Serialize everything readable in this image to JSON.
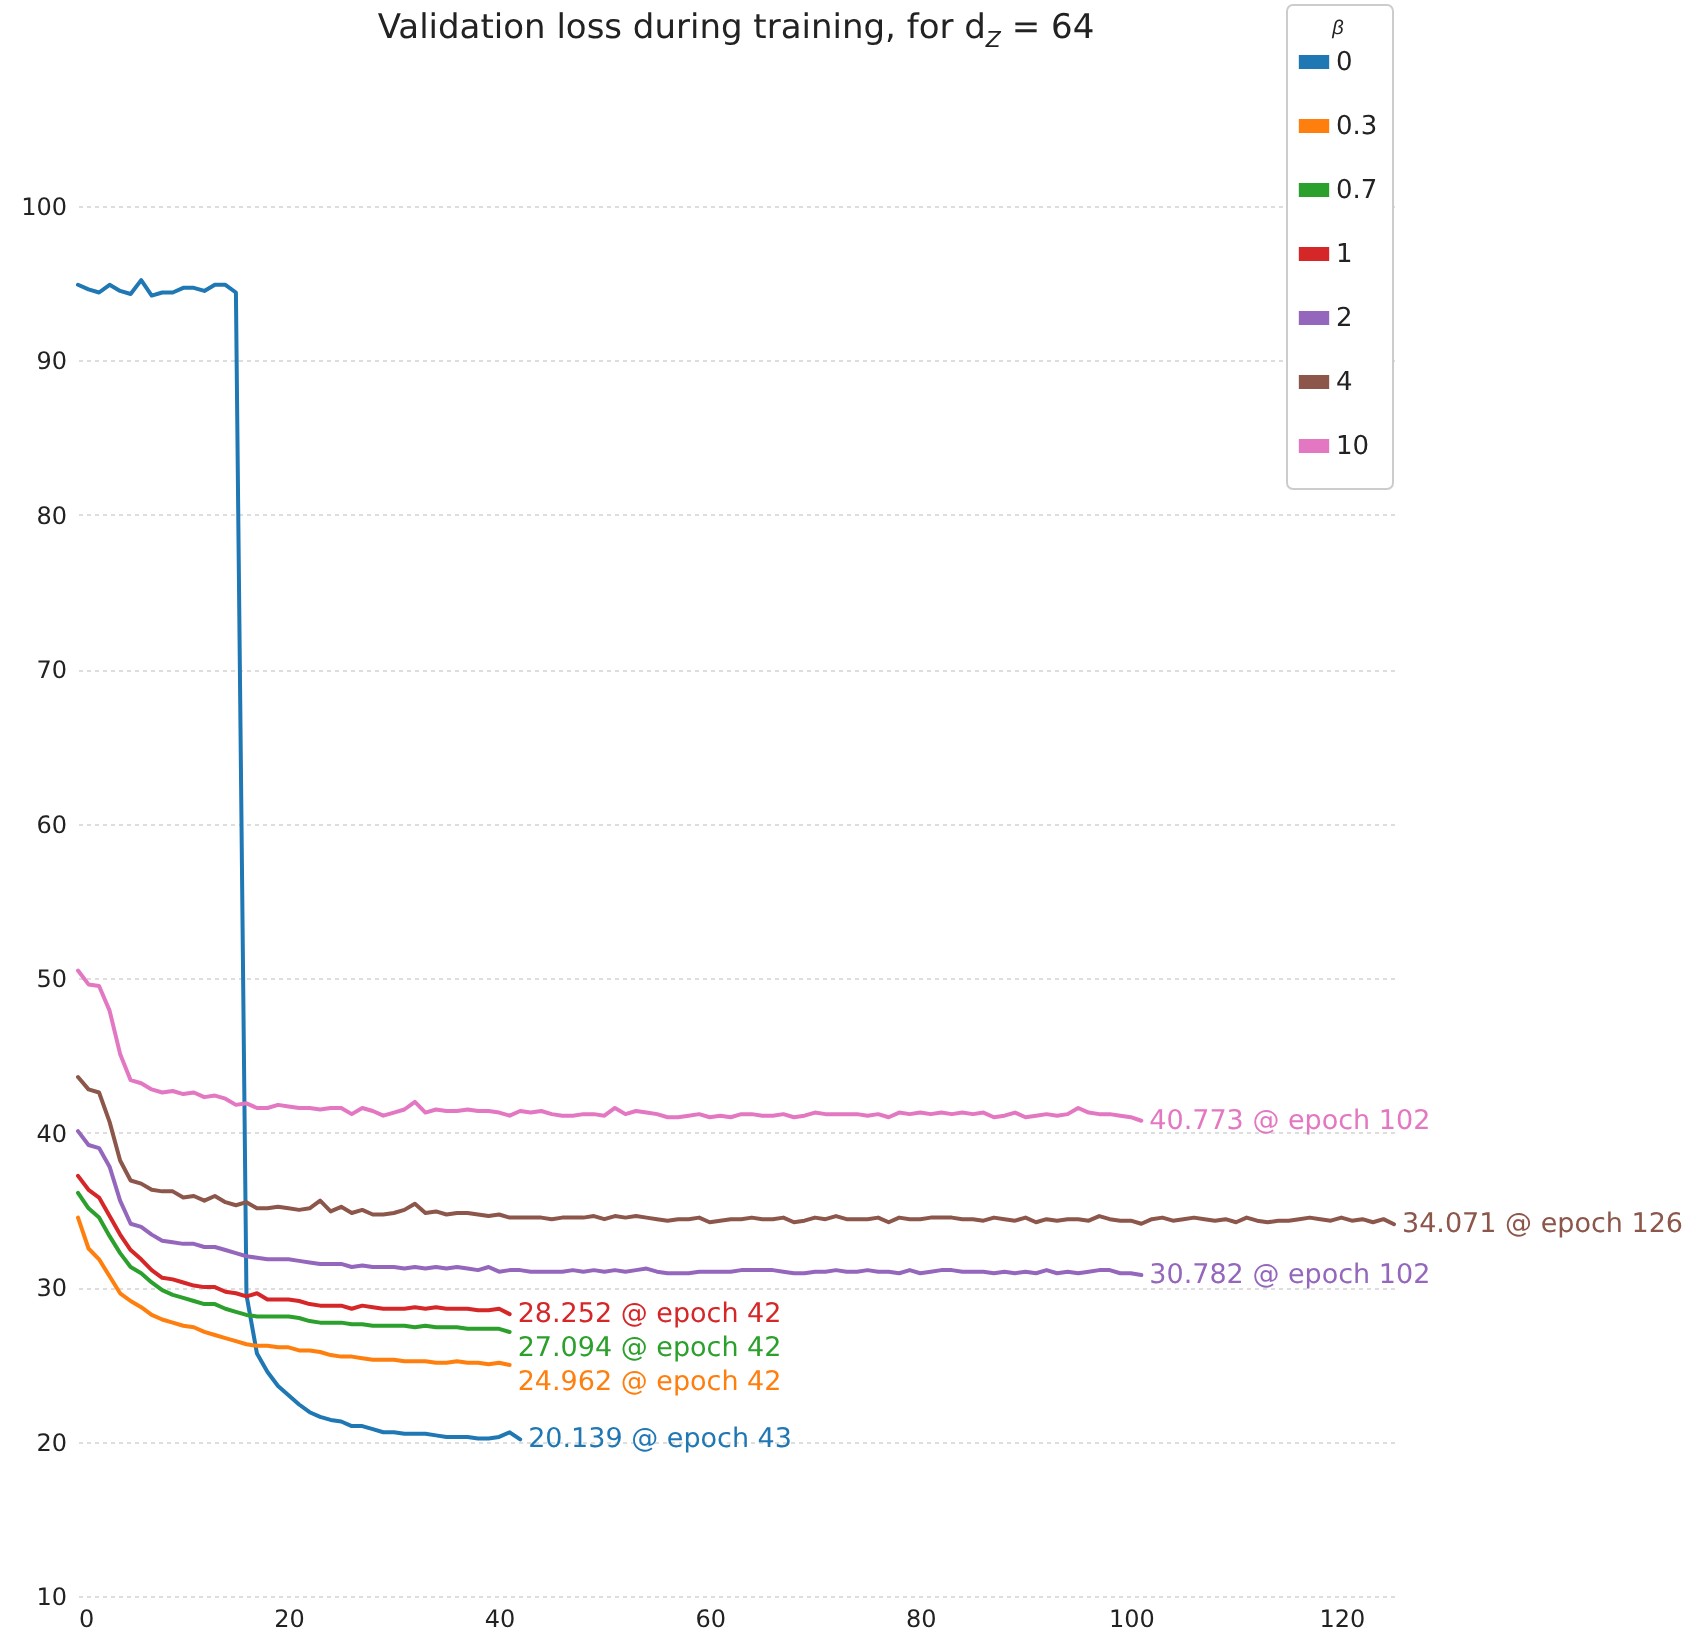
{
  "chart_data": {
    "type": "line",
    "title": "Validation loss during training, for d$_{Z}$ = 64",
    "legend_title": "β",
    "legend": "top right",
    "grid": "y",
    "xlim": [
      0,
      125
    ],
    "xticks": [
      0,
      20,
      40,
      60,
      80,
      100,
      120
    ],
    "ylim": [
      10,
      100
    ],
    "yticks": [
      10,
      20,
      30,
      40,
      50,
      60,
      70,
      80,
      90,
      100
    ],
    "x": [
      0,
      1,
      2,
      3,
      4,
      5,
      6,
      7,
      8,
      9,
      10,
      11,
      12,
      13,
      14,
      15,
      16,
      17,
      18,
      19,
      20,
      21,
      22,
      23,
      24,
      25,
      26,
      27,
      28,
      29,
      30,
      31,
      32,
      33,
      34,
      35,
      36,
      37,
      38,
      39,
      40,
      41,
      42,
      43,
      44,
      45,
      46,
      47,
      48,
      49,
      50,
      51,
      52,
      53,
      54,
      55,
      56,
      57,
      58,
      59,
      60,
      61,
      62,
      63,
      64,
      65,
      66,
      67,
      68,
      69,
      70,
      71,
      72,
      73,
      74,
      75,
      76,
      77,
      78,
      79,
      80,
      81,
      82,
      83,
      84,
      85,
      86,
      87,
      88,
      89,
      90,
      91,
      92,
      93,
      94,
      95,
      96,
      97,
      98,
      99,
      100,
      101,
      102,
      103,
      104,
      105,
      106,
      107,
      108,
      109,
      110,
      111,
      112,
      113,
      114,
      115,
      116,
      117,
      118,
      119,
      120,
      121,
      122,
      123,
      124,
      125
    ],
    "series": [
      {
        "name": "0",
        "color": "#1f77b4",
        "values": [
          94.9,
          94.6,
          94.4,
          94.9,
          94.5,
          94.3,
          95.2,
          94.2,
          94.4,
          94.4,
          94.7,
          94.7,
          94.5,
          94.9,
          94.9,
          94.4,
          29.5,
          25.7,
          24.5,
          23.6,
          23.0,
          22.4,
          21.9,
          21.6,
          21.4,
          21.3,
          21.0,
          21.0,
          20.8,
          20.6,
          20.6,
          20.5,
          20.5,
          20.5,
          20.4,
          20.3,
          20.3,
          20.3,
          20.2,
          20.2,
          20.3,
          20.6,
          20.139,
          null,
          null,
          null,
          null,
          null,
          null,
          null,
          null,
          null,
          null,
          null,
          null,
          null,
          null,
          null,
          null,
          null,
          null,
          null,
          null,
          null,
          null,
          null,
          null,
          null,
          null,
          null,
          null,
          null,
          null,
          null,
          null,
          null,
          null,
          null,
          null,
          null,
          null,
          null,
          null,
          null,
          null,
          null,
          null,
          null,
          null,
          null,
          null,
          null,
          null,
          null,
          null,
          null,
          null,
          null,
          null,
          null,
          null,
          null,
          null,
          null,
          null,
          null,
          null,
          null,
          null,
          null,
          null,
          null,
          null,
          null,
          null,
          null,
          null,
          null,
          null,
          null,
          null,
          null,
          null,
          null,
          null,
          null
        ]
      },
      {
        "name": "0.3",
        "color": "#ff7f0e",
        "values": [
          34.5,
          32.5,
          31.8,
          30.7,
          29.6,
          29.1,
          28.7,
          28.2,
          27.9,
          27.7,
          27.5,
          27.4,
          27.1,
          26.9,
          26.7,
          26.5,
          26.3,
          26.2,
          26.2,
          26.1,
          26.1,
          25.9,
          25.9,
          25.8,
          25.6,
          25.5,
          25.5,
          25.4,
          25.3,
          25.3,
          25.3,
          25.2,
          25.2,
          25.2,
          25.1,
          25.1,
          25.2,
          25.1,
          25.1,
          25.0,
          25.1,
          24.962,
          null,
          null,
          null,
          null,
          null,
          null,
          null,
          null,
          null,
          null,
          null,
          null,
          null,
          null,
          null,
          null,
          null,
          null,
          null,
          null,
          null,
          null,
          null,
          null,
          null,
          null,
          null,
          null,
          null,
          null,
          null,
          null,
          null,
          null,
          null,
          null,
          null,
          null,
          null,
          null,
          null,
          null,
          null,
          null,
          null,
          null,
          null,
          null,
          null,
          null,
          null,
          null,
          null,
          null,
          null,
          null,
          null,
          null,
          null,
          null,
          null,
          null,
          null,
          null,
          null,
          null,
          null,
          null,
          null,
          null,
          null,
          null,
          null,
          null,
          null,
          null,
          null,
          null,
          null,
          null,
          null,
          null,
          null,
          null
        ]
      },
      {
        "name": "0.7",
        "color": "#2ca02c",
        "values": [
          36.1,
          35.1,
          34.5,
          33.3,
          32.2,
          31.3,
          30.9,
          30.3,
          29.8,
          29.5,
          29.3,
          29.1,
          28.9,
          28.9,
          28.6,
          28.4,
          28.2,
          28.1,
          28.1,
          28.1,
          28.1,
          28.0,
          27.8,
          27.7,
          27.7,
          27.7,
          27.6,
          27.6,
          27.5,
          27.5,
          27.5,
          27.5,
          27.4,
          27.5,
          27.4,
          27.4,
          27.4,
          27.3,
          27.3,
          27.3,
          27.3,
          27.094,
          null,
          null,
          null,
          null,
          null,
          null,
          null,
          null,
          null,
          null,
          null,
          null,
          null,
          null,
          null,
          null,
          null,
          null,
          null,
          null,
          null,
          null,
          null,
          null,
          null,
          null,
          null,
          null,
          null,
          null,
          null,
          null,
          null,
          null,
          null,
          null,
          null,
          null,
          null,
          null,
          null,
          null,
          null,
          null,
          null,
          null,
          null,
          null,
          null,
          null,
          null,
          null,
          null,
          null,
          null,
          null,
          null,
          null,
          null,
          null,
          null,
          null,
          null,
          null,
          null,
          null,
          null,
          null,
          null,
          null,
          null,
          null,
          null,
          null,
          null,
          null,
          null,
          null,
          null,
          null,
          null,
          null,
          null,
          null
        ]
      },
      {
        "name": "1",
        "color": "#d62728",
        "values": [
          37.2,
          36.3,
          35.8,
          34.6,
          33.4,
          32.4,
          31.8,
          31.1,
          30.6,
          30.5,
          30.3,
          30.1,
          30.0,
          30.0,
          29.7,
          29.6,
          29.4,
          29.6,
          29.2,
          29.2,
          29.2,
          29.1,
          28.9,
          28.8,
          28.8,
          28.8,
          28.6,
          28.8,
          28.7,
          28.6,
          28.6,
          28.6,
          28.7,
          28.6,
          28.7,
          28.6,
          28.6,
          28.6,
          28.5,
          28.5,
          28.6,
          28.252,
          null,
          null,
          null,
          null,
          null,
          null,
          null,
          null,
          null,
          null,
          null,
          null,
          null,
          null,
          null,
          null,
          null,
          null,
          null,
          null,
          null,
          null,
          null,
          null,
          null,
          null,
          null,
          null,
          null,
          null,
          null,
          null,
          null,
          null,
          null,
          null,
          null,
          null,
          null,
          null,
          null,
          null,
          null,
          null,
          null,
          null,
          null,
          null,
          null,
          null,
          null,
          null,
          null,
          null,
          null,
          null,
          null,
          null,
          null,
          null,
          null,
          null,
          null,
          null,
          null,
          null,
          null,
          null,
          null,
          null,
          null,
          null,
          null,
          null,
          null,
          null,
          null,
          null,
          null,
          null,
          null,
          null,
          null,
          null
        ]
      },
      {
        "name": "2",
        "color": "#9467bd",
        "values": [
          40.1,
          39.2,
          39.0,
          37.8,
          35.6,
          34.1,
          33.9,
          33.4,
          33.0,
          32.9,
          32.8,
          32.8,
          32.6,
          32.6,
          32.4,
          32.2,
          32.0,
          31.9,
          31.8,
          31.8,
          31.8,
          31.7,
          31.6,
          31.5,
          31.5,
          31.5,
          31.3,
          31.4,
          31.3,
          31.3,
          31.3,
          31.2,
          31.3,
          31.2,
          31.3,
          31.2,
          31.3,
          31.2,
          31.1,
          31.3,
          31.0,
          31.1,
          31.1,
          31.0,
          31.0,
          31.0,
          31.0,
          31.1,
          31.0,
          31.1,
          31.0,
          31.1,
          31.0,
          31.1,
          31.2,
          31.0,
          30.9,
          30.9,
          30.9,
          31.0,
          31.0,
          31.0,
          31.0,
          31.1,
          31.1,
          31.1,
          31.1,
          31.0,
          30.9,
          30.9,
          31.0,
          31.0,
          31.1,
          31.0,
          31.0,
          31.1,
          31.0,
          31.0,
          30.9,
          31.1,
          30.9,
          31.0,
          31.1,
          31.1,
          31.0,
          31.0,
          31.0,
          30.9,
          31.0,
          30.9,
          31.0,
          30.9,
          31.1,
          30.9,
          31.0,
          30.9,
          31.0,
          31.1,
          31.1,
          30.9,
          30.9,
          30.782,
          null,
          null,
          null,
          null,
          null,
          null,
          null,
          null,
          null,
          null,
          null,
          null,
          null,
          null,
          null,
          null,
          null,
          null,
          null,
          null,
          null,
          null,
          null,
          null
        ]
      },
      {
        "name": "4",
        "color": "#8c564b",
        "values": [
          43.6,
          42.8,
          42.6,
          40.7,
          38.2,
          36.9,
          36.7,
          36.3,
          36.2,
          36.2,
          35.8,
          35.9,
          35.6,
          35.9,
          35.5,
          35.3,
          35.5,
          35.1,
          35.1,
          35.2,
          35.1,
          35.0,
          35.1,
          35.6,
          34.9,
          35.2,
          34.8,
          35.0,
          34.7,
          34.7,
          34.8,
          35.0,
          35.4,
          34.8,
          34.9,
          34.7,
          34.8,
          34.8,
          34.7,
          34.6,
          34.7,
          34.5,
          34.5,
          34.5,
          34.5,
          34.4,
          34.5,
          34.5,
          34.5,
          34.6,
          34.4,
          34.6,
          34.5,
          34.6,
          34.5,
          34.4,
          34.3,
          34.4,
          34.4,
          34.5,
          34.2,
          34.3,
          34.4,
          34.4,
          34.5,
          34.4,
          34.4,
          34.5,
          34.2,
          34.3,
          34.5,
          34.4,
          34.6,
          34.4,
          34.4,
          34.4,
          34.5,
          34.2,
          34.5,
          34.4,
          34.4,
          34.5,
          34.5,
          34.5,
          34.4,
          34.4,
          34.3,
          34.5,
          34.4,
          34.3,
          34.5,
          34.2,
          34.4,
          34.3,
          34.4,
          34.4,
          34.3,
          34.6,
          34.4,
          34.3,
          34.3,
          34.1,
          34.4,
          34.5,
          34.3,
          34.4,
          34.5,
          34.4,
          34.3,
          34.4,
          34.2,
          34.5,
          34.3,
          34.2,
          34.3,
          34.3,
          34.4,
          34.5,
          34.4,
          34.3,
          34.5,
          34.3,
          34.4,
          34.2,
          34.4,
          34.071
        ]
      },
      {
        "name": "10",
        "color": "#e377c2",
        "values": [
          50.5,
          49.6,
          49.5,
          47.9,
          45.1,
          43.4,
          43.2,
          42.8,
          42.6,
          42.7,
          42.5,
          42.6,
          42.3,
          42.4,
          42.2,
          41.8,
          41.9,
          41.6,
          41.6,
          41.8,
          41.7,
          41.6,
          41.6,
          41.5,
          41.6,
          41.6,
          41.2,
          41.6,
          41.4,
          41.1,
          41.3,
          41.5,
          42.0,
          41.3,
          41.5,
          41.4,
          41.4,
          41.5,
          41.4,
          41.4,
          41.3,
          41.1,
          41.4,
          41.3,
          41.4,
          41.2,
          41.1,
          41.1,
          41.2,
          41.2,
          41.1,
          41.6,
          41.2,
          41.4,
          41.3,
          41.2,
          41.0,
          41.0,
          41.1,
          41.2,
          41.0,
          41.1,
          41.0,
          41.2,
          41.2,
          41.1,
          41.1,
          41.2,
          41.0,
          41.1,
          41.3,
          41.2,
          41.2,
          41.2,
          41.2,
          41.1,
          41.2,
          41.0,
          41.3,
          41.2,
          41.3,
          41.2,
          41.3,
          41.2,
          41.3,
          41.2,
          41.3,
          41.0,
          41.1,
          41.3,
          41.0,
          41.1,
          41.2,
          41.1,
          41.2,
          41.6,
          41.3,
          41.2,
          41.2,
          41.1,
          41.0,
          40.773,
          null,
          null,
          null,
          null,
          null,
          null,
          null,
          null,
          null,
          null,
          null,
          null,
          null,
          null,
          null,
          null,
          null,
          null,
          null,
          null,
          null,
          null,
          null,
          null
        ]
      }
    ],
    "annotations": [
      {
        "text": "20.139 @ epoch 43",
        "x": 42,
        "y": 20.139
      },
      {
        "text": "24.962 @ epoch 42",
        "x": 41,
        "y": 24.962
      },
      {
        "text": "27.094 @ epoch 42",
        "x": 41,
        "y": 27.094
      },
      {
        "text": "28.252 @ epoch 42",
        "x": 41,
        "y": 28.252
      },
      {
        "text": "30.782 @ epoch 102",
        "x": 101,
        "y": 30.782
      },
      {
        "text": "34.071 @ epoch 126",
        "x": 125,
        "y": 34.071
      },
      {
        "text": "40.773 @ epoch 102",
        "x": 101,
        "y": 40.773
      }
    ]
  }
}
